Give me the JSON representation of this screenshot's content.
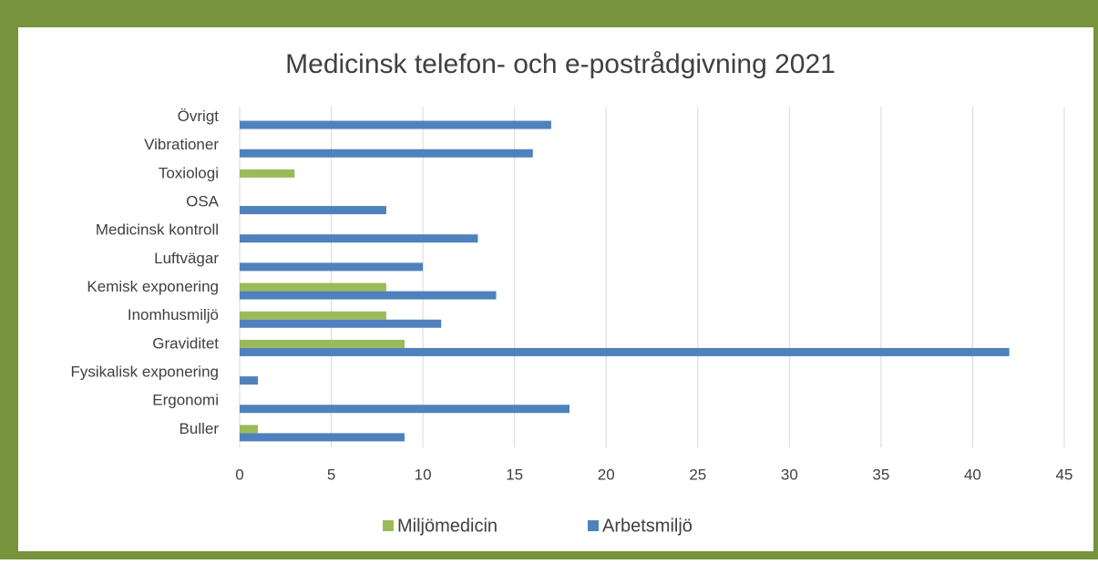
{
  "chart_data": {
    "type": "hbar",
    "title": "Medicinsk telefon- och e-postrådgivning 2021",
    "categories": [
      "Buller",
      "Ergonomi",
      "Fysikalisk exponering",
      "Graviditet",
      "Inomhusmiljö",
      "Kemisk exponering",
      "Luftvägar",
      "Medicinsk kontroll",
      "OSA",
      "Toxiologi",
      "Vibrationer",
      "Övrigt"
    ],
    "series": [
      {
        "name": "Miljömedicin",
        "color": "#9bbb59",
        "values": [
          1,
          0,
          0,
          9,
          8,
          8,
          0,
          0,
          0,
          3,
          0,
          0
        ]
      },
      {
        "name": "Arbetsmiljö",
        "color": "#4f81bd",
        "values": [
          9,
          18,
          1,
          42,
          11,
          14,
          10,
          13,
          8,
          0,
          16,
          17
        ]
      }
    ],
    "xlim": [
      0,
      45
    ],
    "xticks": [
      0,
      5,
      10,
      15,
      20,
      25,
      30,
      35,
      40,
      45
    ],
    "grid": true,
    "legend": "bottom"
  }
}
